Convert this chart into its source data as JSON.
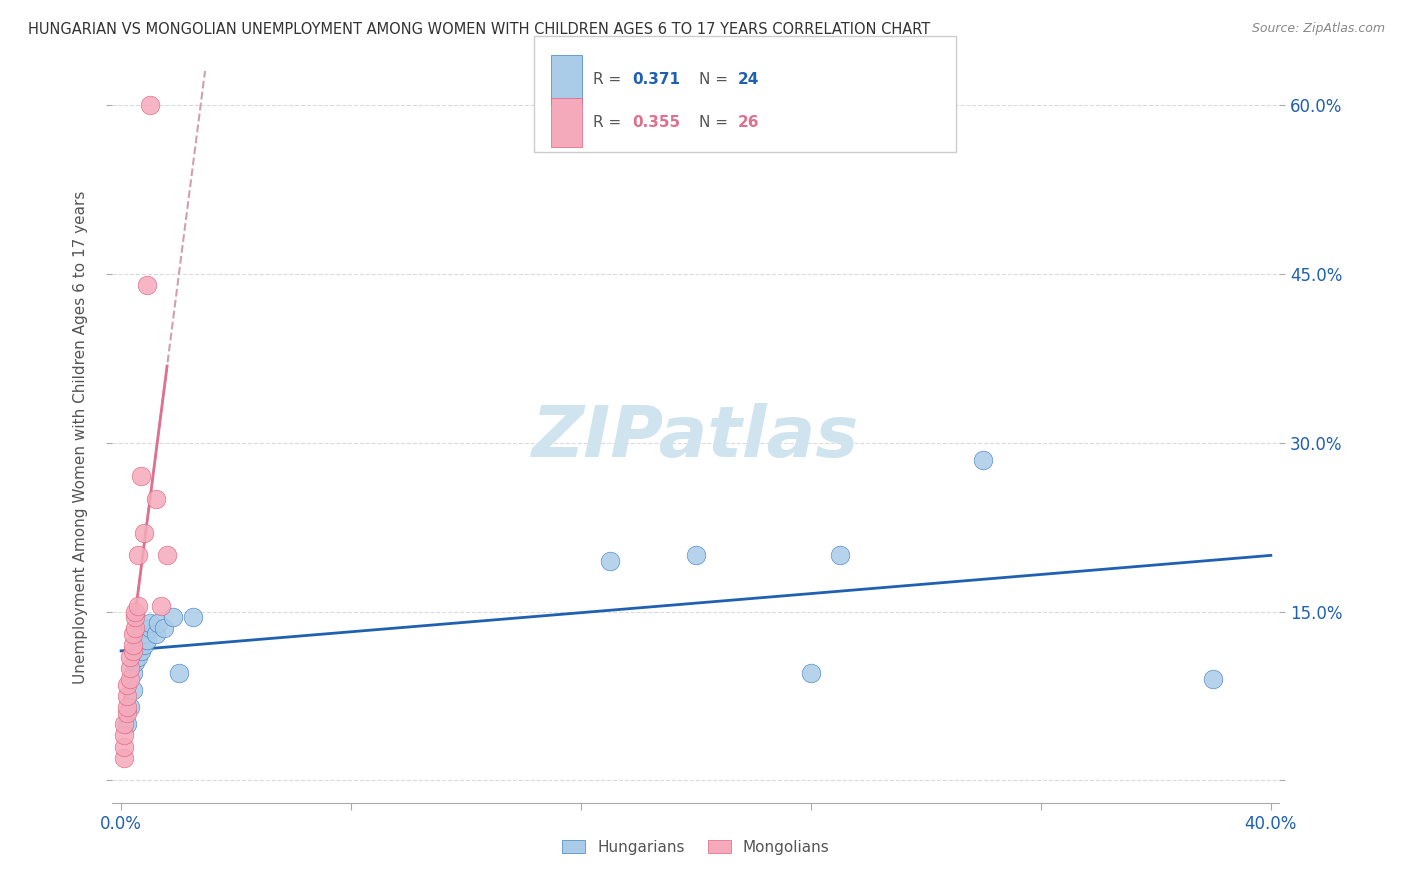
{
  "title": "HUNGARIAN VS MONGOLIAN UNEMPLOYMENT AMONG WOMEN WITH CHILDREN AGES 6 TO 17 YEARS CORRELATION CHART",
  "source": "Source: ZipAtlas.com",
  "ylabel": "Unemployment Among Women with Children Ages 6 to 17 years",
  "xlim": [
    -0.003,
    0.403
  ],
  "ylim": [
    -0.02,
    0.63
  ],
  "xticks": [
    0.0,
    0.08,
    0.16,
    0.24,
    0.32,
    0.4
  ],
  "xtick_labels": [
    "0.0%",
    "",
    "",
    "",
    "",
    "40.0%"
  ],
  "yticks": [
    0.0,
    0.15,
    0.3,
    0.45,
    0.6
  ],
  "ytick_labels_right": [
    "",
    "15.0%",
    "30.0%",
    "45.0%",
    "60.0%"
  ],
  "hungarian_x": [
    0.002,
    0.003,
    0.004,
    0.004,
    0.005,
    0.006,
    0.007,
    0.008,
    0.008,
    0.009,
    0.01,
    0.01,
    0.012,
    0.013,
    0.015,
    0.018,
    0.02,
    0.025,
    0.17,
    0.2,
    0.24,
    0.25,
    0.3,
    0.38
  ],
  "hungarian_y": [
    0.05,
    0.065,
    0.08,
    0.095,
    0.105,
    0.11,
    0.115,
    0.12,
    0.13,
    0.125,
    0.135,
    0.14,
    0.13,
    0.14,
    0.135,
    0.145,
    0.095,
    0.145,
    0.195,
    0.2,
    0.095,
    0.2,
    0.285,
    0.09
  ],
  "mongolian_x": [
    0.001,
    0.001,
    0.001,
    0.001,
    0.002,
    0.002,
    0.002,
    0.002,
    0.003,
    0.003,
    0.003,
    0.004,
    0.004,
    0.004,
    0.005,
    0.005,
    0.005,
    0.006,
    0.006,
    0.007,
    0.008,
    0.009,
    0.01,
    0.012,
    0.014,
    0.016
  ],
  "mongolian_y": [
    0.02,
    0.03,
    0.04,
    0.05,
    0.06,
    0.065,
    0.075,
    0.085,
    0.09,
    0.1,
    0.11,
    0.115,
    0.12,
    0.13,
    0.135,
    0.145,
    0.15,
    0.155,
    0.2,
    0.27,
    0.22,
    0.44,
    0.6,
    0.25,
    0.155,
    0.2
  ],
  "hungarian_color": "#aacce8",
  "mongolian_color": "#f5aabb",
  "hungarian_edge_color": "#4080c0",
  "mongolian_edge_color": "#e06080",
  "hungarian_trend_color": "#2060b0",
  "mongolian_trend_color": "#e07090",
  "mongolian_dash_color": "#d0a0b0",
  "hungarian_R": 0.371,
  "hungarian_N": 24,
  "mongolian_R": 0.355,
  "mongolian_N": 26,
  "watermark_text": "ZIPatlas",
  "watermark_color": "#d0e4f0",
  "background_color": "#ffffff",
  "grid_color": "#cccccc"
}
